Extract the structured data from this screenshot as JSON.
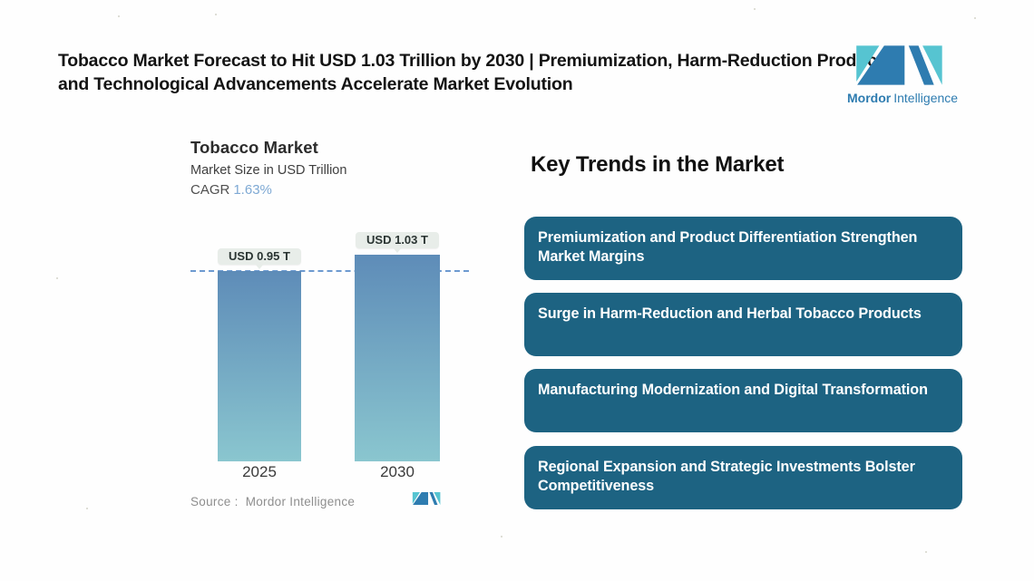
{
  "page": {
    "headline": "Tobacco Market Forecast to Hit USD 1.03 Trillion by 2030 | Premiumization, Harm-Reduction Products, and Technological Advancements Accelerate Market Evolution"
  },
  "brand": {
    "name_bold": "Mordor",
    "name_regular": "Intelligence",
    "logo_icon": "mordor-intelligence-logo",
    "colors": {
      "teal": "#56c4d1",
      "blue": "#2e7cb0"
    }
  },
  "chart": {
    "title": "Tobacco Market",
    "subtitle": "Market Size in USD Trillion",
    "cagr_label": "CAGR",
    "cagr_value": "1.63%",
    "source_label": "Source :",
    "source_value": "Mordor Intelligence"
  },
  "chart_data": {
    "type": "bar",
    "title": "Tobacco Market",
    "subtitle": "Market Size in USD Trillion",
    "cagr": "1.63%",
    "unit": "USD Trillion",
    "categories": [
      "2025",
      "2030"
    ],
    "values": [
      0.95,
      1.03
    ],
    "bars": [
      {
        "category": "2025",
        "value": 0.95,
        "label": "USD 0.95 T"
      },
      {
        "category": "2030",
        "value": 1.03,
        "label": "USD 1.03 T"
      }
    ],
    "reference_line": {
      "value": 0.95,
      "style": "dashed"
    },
    "ylim": [
      0,
      1.1
    ],
    "grid": false,
    "legend": "none",
    "colors": {
      "bar_top": "#5e8cb8",
      "bar_bottom": "#8ac6cf",
      "dashed_line": "#6d9ad0",
      "label_pill_bg": "#e8ede9",
      "cagr_value": "#7ea9d4"
    }
  },
  "trends": {
    "heading": "Key Trends in the Market",
    "card_color": "#1d6382",
    "items": [
      {
        "text": "Premiumization and Product Differentiation Strengthen Market Margins"
      },
      {
        "text": "Surge in Harm-Reduction and Herbal Tobacco Products"
      },
      {
        "text": "Manufacturing Modernization and Digital Transformation"
      },
      {
        "text": "Regional Expansion and Strategic Investments Bolster Competitiveness"
      }
    ]
  }
}
